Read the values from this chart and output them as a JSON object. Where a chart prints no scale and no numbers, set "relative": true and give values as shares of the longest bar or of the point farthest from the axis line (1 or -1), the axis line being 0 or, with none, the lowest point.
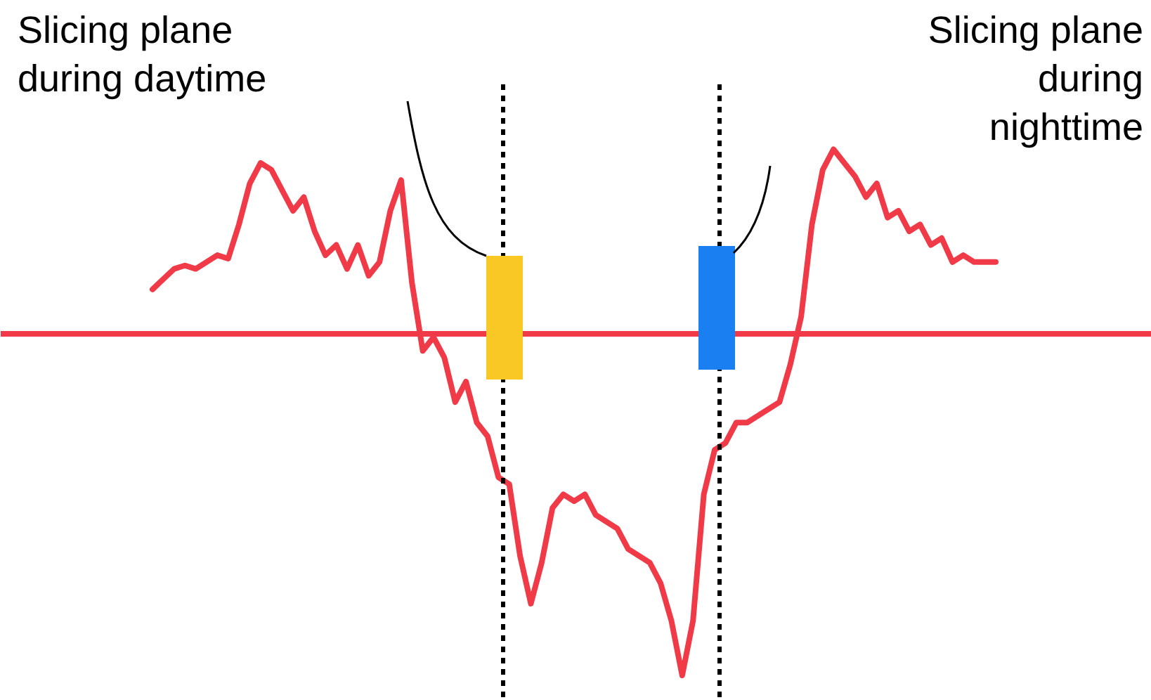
{
  "chart_data": {
    "type": "line",
    "relative": true,
    "tick_labels": false,
    "grid": false,
    "color": "#f03a47",
    "ref_lines": [
      {
        "axis": "y",
        "value": 0,
        "color": "#f03a47"
      }
    ],
    "annotations": [
      "Slicing plane\nduring daytime",
      "Slicing plane\nduring\nnighttime"
    ],
    "categories": [
      null,
      null,
      null,
      null,
      null,
      null,
      null,
      null,
      null,
      null,
      null,
      null,
      null,
      null,
      null,
      null,
      null,
      null,
      null,
      null,
      null,
      null,
      null,
      null,
      null,
      null,
      null,
      null,
      null,
      null,
      null,
      null,
      null,
      null,
      null,
      null,
      null,
      null,
      null,
      null,
      null,
      null,
      null,
      null,
      null,
      null,
      null,
      null,
      null,
      null,
      null,
      null,
      null,
      null,
      null,
      null,
      null,
      null,
      null,
      null,
      null,
      null,
      null,
      null,
      null,
      null,
      null,
      null,
      null,
      null,
      null,
      null,
      null,
      null,
      null,
      null,
      null,
      null,
      null
    ],
    "values": [
      0.13,
      0.16,
      0.19,
      0.2,
      0.19,
      0.21,
      0.23,
      0.22,
      0.32,
      0.44,
      0.5,
      0.48,
      0.42,
      0.36,
      0.4,
      0.3,
      0.23,
      0.26,
      0.19,
      0.26,
      0.17,
      0.21,
      0.36,
      0.45,
      0.15,
      -0.05,
      -0.01,
      -0.07,
      -0.2,
      -0.14,
      -0.26,
      -0.3,
      -0.42,
      -0.44,
      -0.65,
      -0.79,
      -0.67,
      -0.51,
      -0.47,
      -0.49,
      -0.47,
      -0.53,
      -0.55,
      -0.57,
      -0.63,
      -0.65,
      -0.67,
      -0.73,
      -0.84,
      -1,
      -0.84,
      -0.47,
      -0.34,
      -0.32,
      -0.26,
      -0.26,
      -0.24,
      -0.22,
      -0.2,
      -0.09,
      0.05,
      0.32,
      0.48,
      0.54,
      0.5,
      0.46,
      0.4,
      0.44,
      0.34,
      0.36,
      0.3,
      0.32,
      0.26,
      0.28,
      0.21,
      0.23,
      0.21,
      0.21,
      0.21
    ]
  }
}
